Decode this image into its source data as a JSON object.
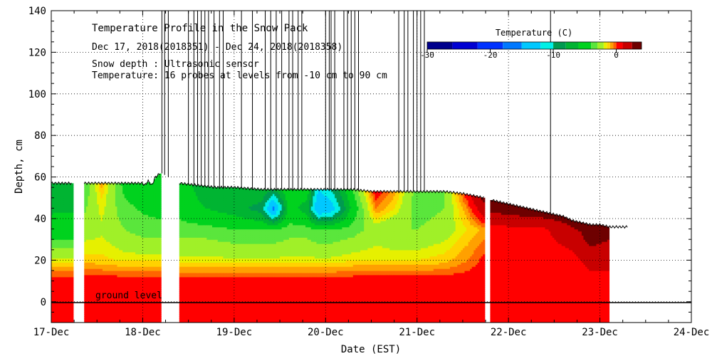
{
  "chart_data": {
    "type": "heatmap",
    "title": "Temperature Profile in the Snow Pack",
    "subtitle": "Dec 17, 2018(2018351) - Dec 24, 2018(2018358)",
    "info_lines": [
      "Snow depth : Ultrasonic sensor",
      "Temperature: 16 probes at levels from -10 cm to 90 cm"
    ],
    "xlabel": "Date (EST)",
    "ylabel": "Depth, cm",
    "xlim": [
      0,
      7
    ],
    "ylim": [
      -10,
      140
    ],
    "x_ticks": [
      {
        "value": 0,
        "label": "17-Dec"
      },
      {
        "value": 1,
        "label": "18-Dec"
      },
      {
        "value": 2,
        "label": "19-Dec"
      },
      {
        "value": 3,
        "label": "20-Dec"
      },
      {
        "value": 4,
        "label": "21-Dec"
      },
      {
        "value": 5,
        "label": "22-Dec"
      },
      {
        "value": 6,
        "label": "23-Dec"
      },
      {
        "value": 7,
        "label": "24-Dec"
      }
    ],
    "y_ticks": [
      {
        "value": 0,
        "label": "0"
      },
      {
        "value": 20,
        "label": "20"
      },
      {
        "value": 40,
        "label": "40"
      },
      {
        "value": 60,
        "label": "60"
      },
      {
        "value": 80,
        "label": "80"
      },
      {
        "value": 100,
        "label": "100"
      },
      {
        "value": 120,
        "label": "120"
      },
      {
        "value": 140,
        "label": "140"
      }
    ],
    "grid": true,
    "ground_level_label": "ground level",
    "colorbar": {
      "title": "Temperature (C)",
      "range": [
        -30,
        4
      ],
      "ticks": [
        {
          "value": -30,
          "label": "-30"
        },
        {
          "value": -20,
          "label": "-20"
        },
        {
          "value": -10,
          "label": "-10"
        },
        {
          "value": 0,
          "label": "0"
        }
      ],
      "bins": [
        {
          "min": -30,
          "max": -26,
          "color": "#00008c"
        },
        {
          "min": -26,
          "max": -22,
          "color": "#0000d2"
        },
        {
          "min": -22,
          "max": -18,
          "color": "#0032ff"
        },
        {
          "min": -18,
          "max": -15,
          "color": "#0078ff"
        },
        {
          "min": -15,
          "max": -12,
          "color": "#00c8ff"
        },
        {
          "min": -12,
          "max": -10,
          "color": "#00f0e6"
        },
        {
          "min": -10,
          "max": -8,
          "color": "#009a50"
        },
        {
          "min": -8,
          "max": -6,
          "color": "#00b432"
        },
        {
          "min": -6,
          "max": -4,
          "color": "#00d21e"
        },
        {
          "min": -4,
          "max": -3,
          "color": "#5ae63c"
        },
        {
          "min": -3,
          "max": -2,
          "color": "#a0f028"
        },
        {
          "min": -2,
          "max": -1.5,
          "color": "#e6f000"
        },
        {
          "min": -1.5,
          "max": -1,
          "color": "#ffd200"
        },
        {
          "min": -1,
          "max": -0.5,
          "color": "#ffa000"
        },
        {
          "min": -0.5,
          "max": 0,
          "color": "#ff6400"
        },
        {
          "min": 0,
          "max": 1,
          "color": "#ff0000"
        },
        {
          "min": 1,
          "max": 2.5,
          "color": "#c80000"
        },
        {
          "min": 2.5,
          "max": 4,
          "color": "#6e0000"
        }
      ]
    },
    "gaps": [
      [
        0.23,
        0.36
      ],
      [
        1.2,
        1.4
      ],
      [
        4.73,
        4.8
      ]
    ],
    "snow_depth": [
      {
        "x": 0.0,
        "y": 57
      },
      {
        "x": 0.23,
        "y": 57
      },
      {
        "x": 0.36,
        "y": 57
      },
      {
        "x": 1.0,
        "y": 57
      },
      {
        "x": 1.02,
        "y": 56
      },
      {
        "x": 1.06,
        "y": 58
      },
      {
        "x": 1.1,
        "y": 56
      },
      {
        "x": 1.14,
        "y": 60
      },
      {
        "x": 1.2,
        "y": 62
      },
      {
        "x": 1.4,
        "y": 57
      },
      {
        "x": 1.6,
        "y": 56
      },
      {
        "x": 1.8,
        "y": 55
      },
      {
        "x": 2.0,
        "y": 55
      },
      {
        "x": 2.3,
        "y": 54
      },
      {
        "x": 2.6,
        "y": 54
      },
      {
        "x": 3.0,
        "y": 54
      },
      {
        "x": 3.3,
        "y": 54
      },
      {
        "x": 3.5,
        "y": 53
      },
      {
        "x": 3.8,
        "y": 53
      },
      {
        "x": 4.0,
        "y": 53
      },
      {
        "x": 4.3,
        "y": 53
      },
      {
        "x": 4.5,
        "y": 52
      },
      {
        "x": 4.73,
        "y": 50
      },
      {
        "x": 4.8,
        "y": 49
      },
      {
        "x": 5.0,
        "y": 47
      },
      {
        "x": 5.2,
        "y": 45
      },
      {
        "x": 5.4,
        "y": 43
      },
      {
        "x": 5.6,
        "y": 41
      },
      {
        "x": 5.7,
        "y": 39
      },
      {
        "x": 5.8,
        "y": 38
      },
      {
        "x": 5.9,
        "y": 37
      },
      {
        "x": 6.0,
        "y": 37
      },
      {
        "x": 6.1,
        "y": 36
      },
      {
        "x": 6.3,
        "y": 36
      }
    ],
    "sensor_spikes": [
      1.21,
      1.24,
      1.28,
      1.5,
      1.56,
      1.6,
      1.64,
      1.68,
      1.72,
      1.78,
      1.84,
      1.88,
      2.08,
      2.2,
      2.34,
      2.4,
      2.46,
      2.52,
      2.6,
      2.64,
      2.7,
      2.74,
      3.0,
      3.04,
      3.06,
      3.1,
      3.2,
      3.24,
      3.28,
      3.32,
      3.36,
      3.8,
      3.86,
      3.9,
      3.96,
      4.0,
      4.04,
      4.08,
      5.46
    ],
    "temperature_columns": [
      {
        "x": 0.0,
        "t": [
          {
            "z": 10,
            "v": 0.5
          },
          {
            "z": 20,
            "v": -1.7
          },
          {
            "z": 35,
            "v": -5
          },
          {
            "z": 50,
            "v": -7
          },
          {
            "z": 57,
            "v": -7
          }
        ]
      },
      {
        "x": 0.23,
        "t": [
          {
            "z": 10,
            "v": 0.5
          },
          {
            "z": 20,
            "v": -1.7
          },
          {
            "z": 35,
            "v": -5
          },
          {
            "z": 50,
            "v": -7
          },
          {
            "z": 57,
            "v": -7
          }
        ]
      },
      {
        "x": 0.36,
        "t": [
          {
            "z": 10,
            "v": 0.5
          },
          {
            "z": 20,
            "v": -1.2
          },
          {
            "z": 35,
            "v": -2.5
          },
          {
            "z": 50,
            "v": -3.5
          },
          {
            "z": 57,
            "v": -4
          }
        ]
      },
      {
        "x": 0.55,
        "t": [
          {
            "z": 10,
            "v": 0.5
          },
          {
            "z": 20,
            "v": -1.3
          },
          {
            "z": 35,
            "v": -2.2
          },
          {
            "z": 50,
            "v": -1.5
          },
          {
            "z": 57,
            "v": -0.8
          }
        ]
      },
      {
        "x": 0.8,
        "t": [
          {
            "z": 10,
            "v": 0.5
          },
          {
            "z": 20,
            "v": -1.6
          },
          {
            "z": 35,
            "v": -3
          },
          {
            "z": 50,
            "v": -4
          },
          {
            "z": 57,
            "v": -4.5
          }
        ]
      },
      {
        "x": 1.0,
        "t": [
          {
            "z": 10,
            "v": 0.5
          },
          {
            "z": 20,
            "v": -1.6
          },
          {
            "z": 35,
            "v": -3.5
          },
          {
            "z": 50,
            "v": -4.5
          },
          {
            "z": 57,
            "v": -5
          }
        ]
      },
      {
        "x": 1.2,
        "t": [
          {
            "z": 10,
            "v": 0.5
          },
          {
            "z": 20,
            "v": -1.6
          },
          {
            "z": 35,
            "v": -3.5
          },
          {
            "z": 50,
            "v": -5
          },
          {
            "z": 57,
            "v": -5
          }
        ]
      },
      {
        "x": 1.4,
        "t": [
          {
            "z": 10,
            "v": 0.5
          },
          {
            "z": 20,
            "v": -1.8
          },
          {
            "z": 35,
            "v": -3.5
          },
          {
            "z": 50,
            "v": -5
          },
          {
            "z": 57,
            "v": -5
          }
        ]
      },
      {
        "x": 1.7,
        "t": [
          {
            "z": 10,
            "v": 0.5
          },
          {
            "z": 20,
            "v": -1.8
          },
          {
            "z": 35,
            "v": -3.5
          },
          {
            "z": 45,
            "v": -6
          },
          {
            "z": 55,
            "v": -7
          }
        ]
      },
      {
        "x": 2.0,
        "t": [
          {
            "z": 10,
            "v": 0.5
          },
          {
            "z": 20,
            "v": -1.8
          },
          {
            "z": 35,
            "v": -4
          },
          {
            "z": 45,
            "v": -7
          },
          {
            "z": 55,
            "v": -6
          }
        ]
      },
      {
        "x": 2.3,
        "t": [
          {
            "z": 10,
            "v": 0.5
          },
          {
            "z": 20,
            "v": -1.8
          },
          {
            "z": 35,
            "v": -4
          },
          {
            "z": 45,
            "v": -9
          },
          {
            "z": 54,
            "v": -6
          }
        ]
      },
      {
        "x": 2.43,
        "t": [
          {
            "z": 10,
            "v": 0.5
          },
          {
            "z": 20,
            "v": -1.8
          },
          {
            "z": 35,
            "v": -4
          },
          {
            "z": 45,
            "v": -16
          },
          {
            "z": 54,
            "v": -8
          }
        ]
      },
      {
        "x": 2.6,
        "t": [
          {
            "z": 10,
            "v": 0.5
          },
          {
            "z": 20,
            "v": -1.8
          },
          {
            "z": 35,
            "v": -3.5
          },
          {
            "z": 45,
            "v": -5
          },
          {
            "z": 54,
            "v": -4
          }
        ]
      },
      {
        "x": 2.8,
        "t": [
          {
            "z": 10,
            "v": 0.5
          },
          {
            "z": 20,
            "v": -1.8
          },
          {
            "z": 35,
            "v": -3.5
          },
          {
            "z": 45,
            "v": -7
          },
          {
            "z": 54,
            "v": -5
          }
        ]
      },
      {
        "x": 2.92,
        "t": [
          {
            "z": 10,
            "v": 0.5
          },
          {
            "z": 20,
            "v": -1.8
          },
          {
            "z": 35,
            "v": -4
          },
          {
            "z": 45,
            "v": -15
          },
          {
            "z": 54,
            "v": -12
          }
        ]
      },
      {
        "x": 3.05,
        "t": [
          {
            "z": 10,
            "v": 0.5
          },
          {
            "z": 20,
            "v": -1.8
          },
          {
            "z": 35,
            "v": -4
          },
          {
            "z": 45,
            "v": -14
          },
          {
            "z": 54,
            "v": -10
          }
        ]
      },
      {
        "x": 3.3,
        "t": [
          {
            "z": 10,
            "v": 0.5
          },
          {
            "z": 20,
            "v": -1.5
          },
          {
            "z": 35,
            "v": -3.5
          },
          {
            "z": 45,
            "v": -5
          },
          {
            "z": 54,
            "v": -4
          }
        ]
      },
      {
        "x": 3.55,
        "t": [
          {
            "z": 10,
            "v": 0.5
          },
          {
            "z": 20,
            "v": -1.5
          },
          {
            "z": 35,
            "v": -2.5
          },
          {
            "z": 45,
            "v": -0.5
          },
          {
            "z": 53,
            "v": 0.5
          }
        ]
      },
      {
        "x": 3.75,
        "t": [
          {
            "z": 10,
            "v": 0.5
          },
          {
            "z": 20,
            "v": -1.5
          },
          {
            "z": 35,
            "v": -3
          },
          {
            "z": 45,
            "v": -1.5
          },
          {
            "z": 53,
            "v": -0.8
          }
        ]
      },
      {
        "x": 4.0,
        "t": [
          {
            "z": 10,
            "v": 0.5
          },
          {
            "z": 20,
            "v": -1.5
          },
          {
            "z": 35,
            "v": -3
          },
          {
            "z": 45,
            "v": -3.5
          },
          {
            "z": 53,
            "v": -3.5
          }
        ]
      },
      {
        "x": 4.3,
        "t": [
          {
            "z": 10,
            "v": 0.5
          },
          {
            "z": 20,
            "v": -1.2
          },
          {
            "z": 35,
            "v": -2.5
          },
          {
            "z": 45,
            "v": -3
          },
          {
            "z": 53,
            "v": -3
          }
        ]
      },
      {
        "x": 4.55,
        "t": [
          {
            "z": 10,
            "v": 0.5
          },
          {
            "z": 20,
            "v": -0.5
          },
          {
            "z": 35,
            "v": -1.5
          },
          {
            "z": 45,
            "v": -0.5
          },
          {
            "z": 52,
            "v": 0.5
          }
        ]
      },
      {
        "x": 4.73,
        "t": [
          {
            "z": 10,
            "v": 0.5
          },
          {
            "z": 20,
            "v": 0.2
          },
          {
            "z": 35,
            "v": -0.8
          },
          {
            "z": 45,
            "v": 2
          },
          {
            "z": 50,
            "v": 3
          }
        ]
      },
      {
        "x": 4.8,
        "t": [
          {
            "z": 10,
            "v": 0.5
          },
          {
            "z": 20,
            "v": 0.5
          },
          {
            "z": 35,
            "v": 0.5
          },
          {
            "z": 45,
            "v": 3
          },
          {
            "z": 49,
            "v": 3
          }
        ]
      },
      {
        "x": 5.4,
        "t": [
          {
            "z": 10,
            "v": 0.5
          },
          {
            "z": 20,
            "v": 0.5
          },
          {
            "z": 35,
            "v": 0.8
          },
          {
            "z": 42,
            "v": 3
          },
          {
            "z": 43,
            "v": 3
          }
        ]
      },
      {
        "x": 5.7,
        "t": [
          {
            "z": 10,
            "v": 0.5
          },
          {
            "z": 20,
            "v": 0.5
          },
          {
            "z": 30,
            "v": 1.5
          },
          {
            "z": 39,
            "v": 3
          }
        ]
      },
      {
        "x": 5.9,
        "t": [
          {
            "z": 10,
            "v": 0.5
          },
          {
            "z": 20,
            "v": 1.5
          },
          {
            "z": 30,
            "v": 3
          },
          {
            "z": 37,
            "v": 3
          }
        ]
      },
      {
        "x": 6.1,
        "t": [
          {
            "z": 10,
            "v": 0.5
          },
          {
            "z": 20,
            "v": 1.5
          },
          {
            "z": 30,
            "v": 2.5
          },
          {
            "z": 36,
            "v": 3
          }
        ]
      }
    ]
  }
}
